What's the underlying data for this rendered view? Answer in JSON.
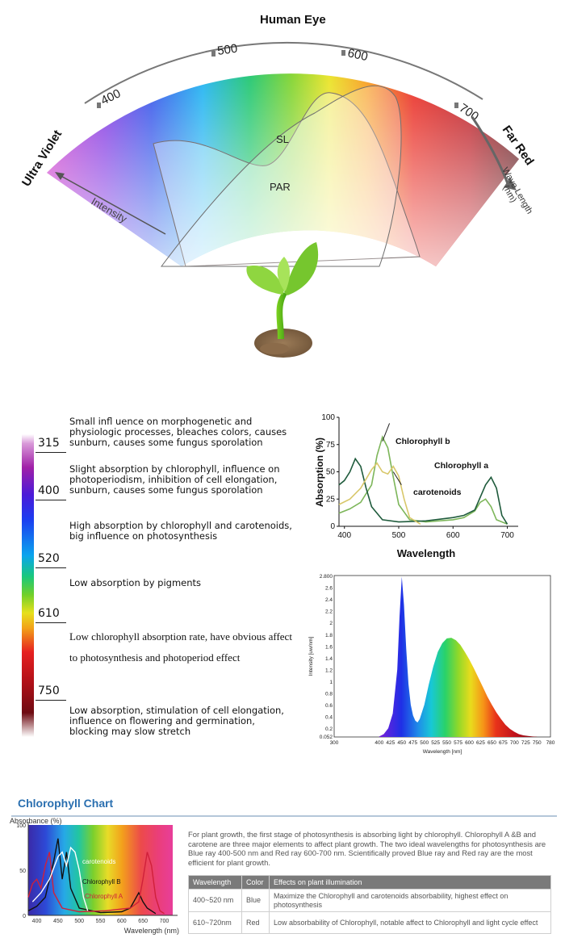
{
  "spectrum_diagram": {
    "arc_title": "Human Eye",
    "tick_labels": [
      "400",
      "500",
      "600",
      "700"
    ],
    "left_label": "Ultra Violet",
    "right_label": "Far Red",
    "axis_label": "Intensity",
    "wave_label": "Wave Length",
    "wave_unit": "(nm)",
    "curve_labels": [
      "SL",
      "PAR"
    ]
  },
  "band_table": {
    "wavelengths": [
      "315",
      "400",
      "520",
      "610",
      "750"
    ],
    "descriptions": [
      "Small infl uence on morphogenetic and physiologic processes, bleaches colors, causes sunburn, causes some fungus sporolation",
      "Slight absorption by chlorophyll, influence on photoperiodism, inhibition of cell elongation, sunburn, causes some fungus sporolation",
      "High absorption by chlorophyll and carotenoids, big influence on photosynthesis",
      "Low absorption by pigments",
      "Low chlorophyll absorption rate, have obvious affect to photosynthesis and photoperiod effect",
      "Low absorption, stimulation of cell elongation, influence on  flowering and germination, blocking may slow stretch"
    ]
  },
  "chart_data": [
    {
      "type": "line",
      "xlabel": "Wavelength",
      "ylabel": "Absorption (%)",
      "xlim": [
        390,
        720
      ],
      "ylim": [
        0,
        100
      ],
      "xticks": [
        "400",
        "500",
        "600",
        "700"
      ],
      "yticks": [
        "0",
        "25",
        "50",
        "75",
        "100"
      ],
      "series": [
        {
          "name": "Chlorophyll b",
          "color": "#7db65a",
          "x": [
            390,
            410,
            430,
            450,
            460,
            470,
            480,
            490,
            500,
            520,
            550,
            600,
            620,
            640,
            650,
            660,
            670,
            680,
            700
          ],
          "y": [
            12,
            16,
            22,
            38,
            65,
            82,
            72,
            45,
            20,
            6,
            4,
            6,
            8,
            14,
            22,
            25,
            18,
            6,
            2
          ]
        },
        {
          "name": "Chlorophyll a",
          "color": "#1f5b3c",
          "x": [
            390,
            400,
            410,
            420,
            430,
            440,
            450,
            470,
            500,
            550,
            600,
            620,
            640,
            660,
            670,
            680,
            690,
            700
          ],
          "y": [
            38,
            42,
            50,
            62,
            55,
            35,
            18,
            6,
            4,
            5,
            8,
            10,
            15,
            38,
            45,
            35,
            10,
            2
          ]
        },
        {
          "name": "carotenoids",
          "color": "#d8c76a",
          "x": [
            390,
            410,
            430,
            450,
            460,
            470,
            480,
            490,
            500,
            510,
            520,
            540
          ],
          "y": [
            20,
            25,
            35,
            52,
            58,
            50,
            48,
            55,
            46,
            25,
            8,
            2
          ]
        }
      ]
    },
    {
      "type": "area",
      "xlabel": "Wavelength [nm]",
      "ylabel": "Intensity [uw/nm]",
      "xlim": [
        300,
        780
      ],
      "ylim": [
        0.052,
        2.8
      ],
      "top_tick": "2.800",
      "yticks": [
        "0.052",
        "0.2",
        "0.4",
        "0.6",
        "0.8",
        "1",
        "1.2",
        "1.4",
        "1.6",
        "1.8",
        "2",
        "2.2",
        "2.4",
        "2.6"
      ],
      "xticks": [
        "300",
        "400",
        "425",
        "450",
        "475",
        "500",
        "525",
        "550",
        "575",
        "600",
        "625",
        "650",
        "675",
        "700",
        "725",
        "750",
        "780"
      ],
      "x": [
        400,
        410,
        420,
        430,
        440,
        445,
        450,
        455,
        460,
        465,
        470,
        475,
        480,
        485,
        490,
        500,
        510,
        520,
        530,
        540,
        550,
        560,
        570,
        580,
        590,
        600,
        610,
        620,
        630,
        640,
        650,
        660,
        670,
        680,
        690,
        700,
        710,
        720,
        730,
        740,
        750
      ],
      "y": [
        0.06,
        0.1,
        0.2,
        0.45,
        1.2,
        2.1,
        2.78,
        2.3,
        1.55,
        0.95,
        0.6,
        0.42,
        0.33,
        0.3,
        0.36,
        0.6,
        0.95,
        1.25,
        1.5,
        1.65,
        1.73,
        1.74,
        1.7,
        1.62,
        1.5,
        1.37,
        1.22,
        1.06,
        0.9,
        0.74,
        0.6,
        0.47,
        0.36,
        0.26,
        0.19,
        0.14,
        0.1,
        0.08,
        0.07,
        0.06,
        0.055
      ]
    },
    {
      "type": "line",
      "title": "Absorbance (%)",
      "xlabel": "Wavelength (nm)",
      "xlim": [
        380,
        720
      ],
      "ylim": [
        0,
        100
      ],
      "yticks": [
        "0",
        "50",
        "100"
      ],
      "xticks": [
        "400",
        "450",
        "500",
        "550",
        "600",
        "650",
        "700"
      ],
      "series": [
        {
          "name": "Chlorophyll B",
          "color": "#111111",
          "x": [
            380,
            400,
            420,
            440,
            450,
            460,
            470,
            480,
            500,
            550,
            600,
            620,
            640,
            650,
            660,
            680
          ],
          "y": [
            5,
            10,
            20,
            60,
            85,
            40,
            70,
            30,
            8,
            3,
            4,
            8,
            25,
            15,
            8,
            2
          ]
        },
        {
          "name": "Chlorophyll A",
          "color": "#d0203a",
          "x": [
            380,
            390,
            400,
            410,
            420,
            430,
            440,
            460,
            500,
            560,
            620,
            640,
            650,
            660,
            670,
            680,
            690,
            700
          ],
          "y": [
            20,
            35,
            40,
            30,
            55,
            70,
            25,
            8,
            4,
            5,
            8,
            15,
            40,
            70,
            55,
            20,
            5,
            2
          ]
        },
        {
          "name": "carotenoids",
          "color": "#ffffff",
          "x": [
            390,
            410,
            430,
            450,
            460,
            470,
            480,
            490,
            500,
            510,
            520
          ],
          "y": [
            15,
            25,
            40,
            65,
            70,
            55,
            75,
            70,
            50,
            20,
            5
          ]
        }
      ]
    }
  ],
  "chlorophyll_section": {
    "title": "Chlorophyll Chart",
    "intro": "For plant growth, the first stage of photosynthesis is absorbing light by chlorophyll. Chlorophyll A &B and carotene are three major elements to affect plant growth. The two ideal wavelengths for photosynthesis are Blue ray 400-500 nm and Red ray 600-700 nm. Scientifically proved Blue ray and Red ray are the most efficient for plant growth.",
    "table_headers": [
      "Wavelength",
      "Color",
      "Effects on plant illumination"
    ],
    "table_rows": [
      [
        "400~520 nm",
        "Blue",
        "Maximize the Chlorophyll and carotenoids  absorbability, highest effect on photosynthesis"
      ],
      [
        "610~720nm",
        "Red",
        "Low absorbability of Chlorophyll, notable affect to Chlorophyll and light cycle effect"
      ]
    ]
  }
}
